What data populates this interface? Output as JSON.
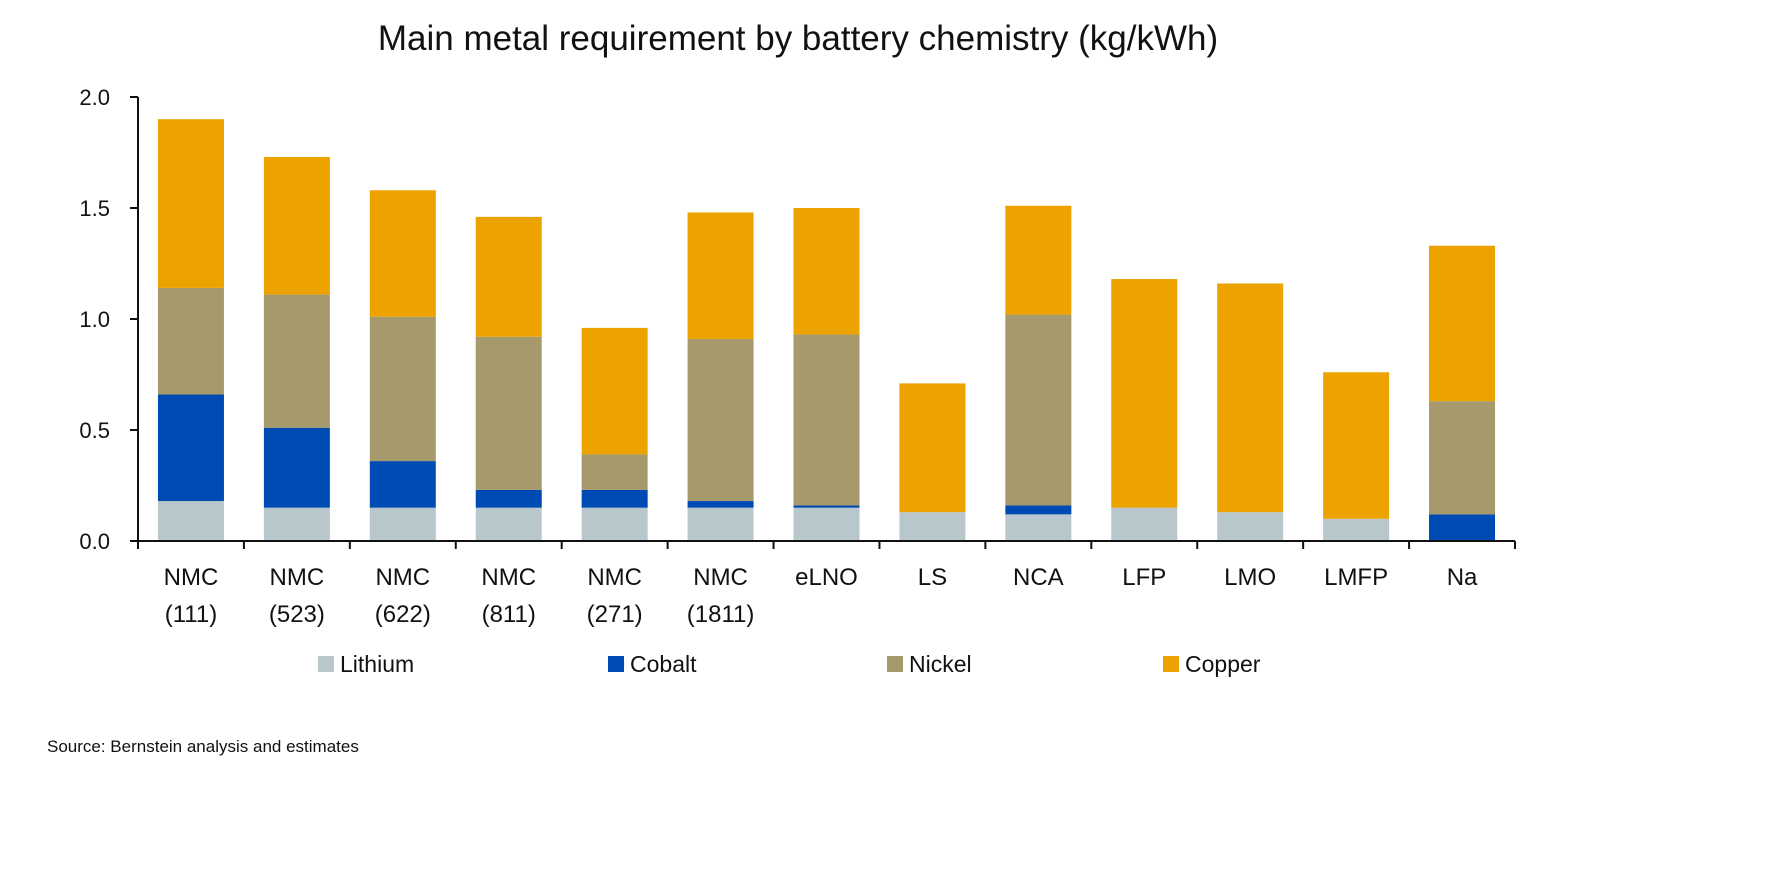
{
  "chart_data": {
    "type": "bar",
    "stacked": true,
    "title": "Main metal requirement by battery chemistry (kg/kWh)",
    "xlabel": "",
    "ylabel": "",
    "ylim": [
      0,
      2.0
    ],
    "yticks": [
      "0.0",
      "0.5",
      "1.0",
      "1.5",
      "2.0"
    ],
    "grid": false,
    "legend_position": "bottom",
    "categories": [
      [
        "NMC",
        "(111)"
      ],
      [
        "NMC",
        "(523)"
      ],
      [
        "NMC",
        "(622)"
      ],
      [
        "NMC",
        "(811)"
      ],
      [
        "NMC",
        "(271)"
      ],
      [
        "NMC",
        "(1811)"
      ],
      [
        "eLNO"
      ],
      [
        "LS"
      ],
      [
        "NCA"
      ],
      [
        "LFP"
      ],
      [
        "LMO"
      ],
      [
        "LMFP"
      ],
      [
        "Na"
      ]
    ],
    "series": [
      {
        "name": "Lithium",
        "color": "#b7c7cb",
        "values": [
          0.18,
          0.15,
          0.15,
          0.15,
          0.15,
          0.15,
          0.15,
          0.13,
          0.12,
          0.15,
          0.13,
          0.1,
          0.0
        ]
      },
      {
        "name": "Cobalt",
        "color": "#004bb3",
        "values": [
          0.48,
          0.36,
          0.21,
          0.08,
          0.08,
          0.03,
          0.01,
          0.0,
          0.04,
          0.0,
          0.0,
          0.0,
          0.12
        ]
      },
      {
        "name": "Nickel",
        "color": "#a69a6c",
        "values": [
          0.48,
          0.6,
          0.65,
          0.69,
          0.16,
          0.73,
          0.77,
          0.0,
          0.86,
          0.0,
          0.0,
          0.0,
          0.51
        ]
      },
      {
        "name": "Copper",
        "color": "#eca300",
        "values": [
          0.76,
          0.62,
          0.57,
          0.54,
          0.57,
          0.57,
          0.57,
          0.58,
          0.49,
          1.03,
          1.03,
          0.66,
          0.7
        ]
      }
    ],
    "source": "Source: Bernstein analysis and estimates"
  }
}
